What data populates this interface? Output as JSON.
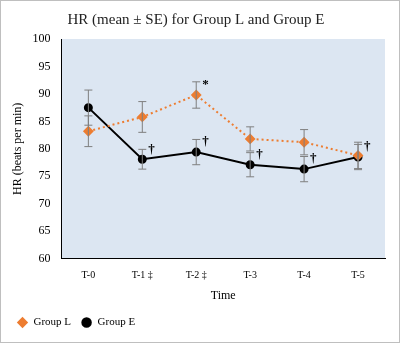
{
  "chart_data": {
    "type": "line",
    "title": "HR (mean ± SE) for Group L and Group E",
    "x_label": "Time",
    "y_label": "HR (beats per min)",
    "categories": [
      "T-0",
      "T-1 ‡",
      "T-2 ‡",
      "T-3",
      "T-4",
      "T-5"
    ],
    "series": [
      {
        "name": "Group L",
        "color": "#ed7d31",
        "marker": "diamond",
        "line_style": "dotted",
        "values": [
          83.2,
          85.8,
          89.8,
          81.8,
          81.2,
          78.8
        ],
        "errors": [
          2.8,
          2.8,
          2.4,
          2.2,
          2.3,
          2.4
        ]
      },
      {
        "name": "Group E",
        "color": "#000000",
        "marker": "circle",
        "line_style": "solid",
        "values": [
          87.5,
          78.1,
          79.4,
          77.1,
          76.3,
          78.5
        ],
        "errors": [
          3.2,
          1.8,
          2.3,
          2.2,
          2.3,
          2.3
        ]
      }
    ],
    "annotations": [
      {
        "series": "Group L",
        "index": 2,
        "text": "*"
      },
      {
        "series": "Group E",
        "index": 1,
        "text": "†"
      },
      {
        "series": "Group E",
        "index": 2,
        "text": "†"
      },
      {
        "series": "Group E",
        "index": 3,
        "text": "†"
      },
      {
        "series": "Group E",
        "index": 4,
        "text": "†"
      },
      {
        "series": "Group E",
        "index": 5,
        "text": "†"
      }
    ],
    "ylim": [
      60,
      100
    ],
    "yticks": [
      60,
      65,
      70,
      75,
      80,
      85,
      90,
      95,
      100
    ],
    "grid": false,
    "legend": "lower left"
  }
}
